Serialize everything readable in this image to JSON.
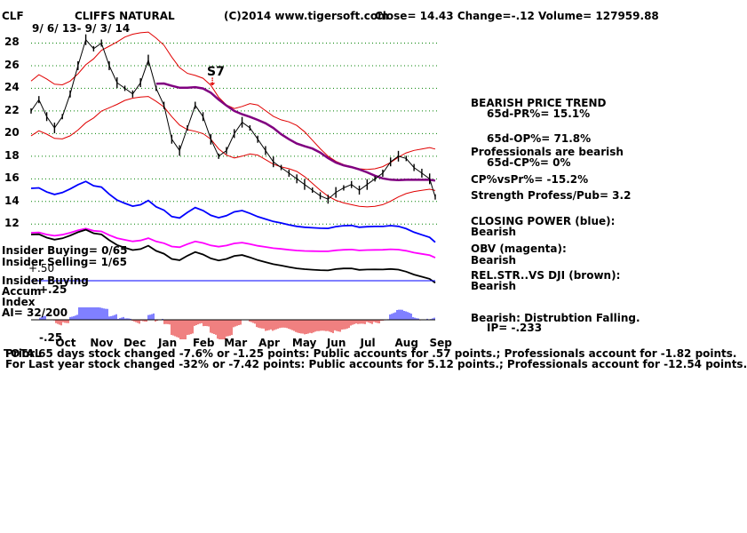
{
  "header": {
    "ticker": "CLF",
    "name": "CLIFFS NATURAL",
    "copyright": "(C)2014 www.tigersoft.com",
    "quote": "Close=  14.43   Change=-.12  Volume= 127959.88",
    "date_range": "9/ 6/ 13-  9/ 3/ 14"
  },
  "signal_label": "S7",
  "signal_arrow": "⇣",
  "right_panel": {
    "trend_title": "BEARISH PRICE TREND",
    "pr": "65d-PR%= 15.1%",
    "op": "65d-OP%= 71.8%",
    "professionals": "Professionals are bearish",
    "cp": "65d-CP%= 0%",
    "cpvspr": "CP%vsPr%= -15.2%",
    "strength": "Strength Profess/Pub= 3.2",
    "closing_power_title": "CLOSING POWER (blue):",
    "closing_power_value": "Bearish",
    "obv_title": "OBV (magenta):",
    "obv_value": "Bearish",
    "relstr_title": "REL.STR..VS DJI (brown):",
    "relstr_value": "Bearish",
    "distribution": "Bearish: Distrubtion Falling.",
    "ip": "IP= -.233"
  },
  "left_panel": {
    "insider_buying": "Insider Buying= 0/65",
    "insider_selling": "Insider Selling= 1/65",
    "plus50": "+.50",
    "insider_buying_label": "Insider Buying",
    "accum": "Accum",
    "plus25": "+.25",
    "index": "Index",
    "ai": "AI= 32/200",
    "minus25": "-.25"
  },
  "footer": {
    "overlap": "TOTAL",
    "line1": "Prior 65 days stock changed -7.6% or -1.25 points:  Public accounts for  .57 points.;  Professionals account for -1.82 points.",
    "line2": "For Last year stock changed -32% or -7.42 points:  Public accounts for  5.12 points.;  Professionals account for -12.54 points."
  },
  "colors": {
    "price": "#000000",
    "bands": "#e00000",
    "ma": "#800080",
    "closing_power": "#0000ff",
    "obv": "#ff00ff",
    "relstr": "#000000",
    "grid": "#008000",
    "accum_pos": "#0000ff",
    "accum_neg": "#e00000",
    "insider_line": "#0000ff"
  },
  "chart_data": {
    "type": "line",
    "title": "CLIFFS NATURAL",
    "xlabel": "",
    "ylabel": "",
    "ylim": [
      11,
      30
    ],
    "y_ticks": [
      12,
      14,
      16,
      18,
      20,
      22,
      24,
      26,
      28
    ],
    "x_ticks": [
      "Oct",
      "Nov",
      "Dec",
      "Jan",
      "Feb",
      "Mar",
      "Apr",
      "May",
      "Jun",
      "Jul",
      "Aug",
      "Sep"
    ],
    "grid": true,
    "series": [
      {
        "name": "Price",
        "x": [
          "2013-09-06",
          "2013-09-13",
          "2013-09-20",
          "2013-09-27",
          "2013-10-04",
          "2013-10-11",
          "2013-10-18",
          "2013-10-25",
          "2013-11-01",
          "2013-11-08",
          "2013-11-15",
          "2013-11-22",
          "2013-11-29",
          "2013-12-06",
          "2013-12-13",
          "2013-12-20",
          "2013-12-27",
          "2014-01-03",
          "2014-01-10",
          "2014-01-17",
          "2014-01-24",
          "2014-01-31",
          "2014-02-07",
          "2014-02-14",
          "2014-02-21",
          "2014-02-28",
          "2014-03-07",
          "2014-03-14",
          "2014-03-21",
          "2014-03-28",
          "2014-04-04",
          "2014-04-11",
          "2014-04-18",
          "2014-04-25",
          "2014-05-02",
          "2014-05-09",
          "2014-05-16",
          "2014-05-23",
          "2014-05-30",
          "2014-06-06",
          "2014-06-13",
          "2014-06-20",
          "2014-06-27",
          "2014-07-04",
          "2014-07-11",
          "2014-07-18",
          "2014-07-25",
          "2014-08-01",
          "2014-08-08",
          "2014-08-15",
          "2014-08-22",
          "2014-08-29",
          "2014-09-03"
        ],
        "values": [
          22.0,
          23.0,
          21.5,
          20.5,
          21.5,
          23.5,
          26.0,
          28.3,
          27.5,
          28.0,
          26.0,
          24.5,
          24.0,
          23.5,
          24.5,
          26.5,
          24.0,
          22.5,
          19.5,
          18.5,
          20.5,
          22.5,
          21.5,
          19.5,
          18.0,
          18.5,
          20.0,
          21.0,
          20.5,
          19.5,
          18.5,
          17.5,
          17.0,
          16.5,
          16.0,
          15.5,
          15.0,
          14.5,
          14.2,
          14.8,
          15.2,
          15.5,
          15.0,
          15.5,
          16.0,
          16.5,
          17.5,
          18.0,
          17.8,
          17.0,
          16.5,
          16.0,
          14.4
        ]
      }
    ],
    "indicators": [
      "Closing Power",
      "OBV",
      "Rel.Str vs DJI",
      "Accumulation Index"
    ],
    "accum_ylim": [
      -0.25,
      0.5
    ]
  }
}
